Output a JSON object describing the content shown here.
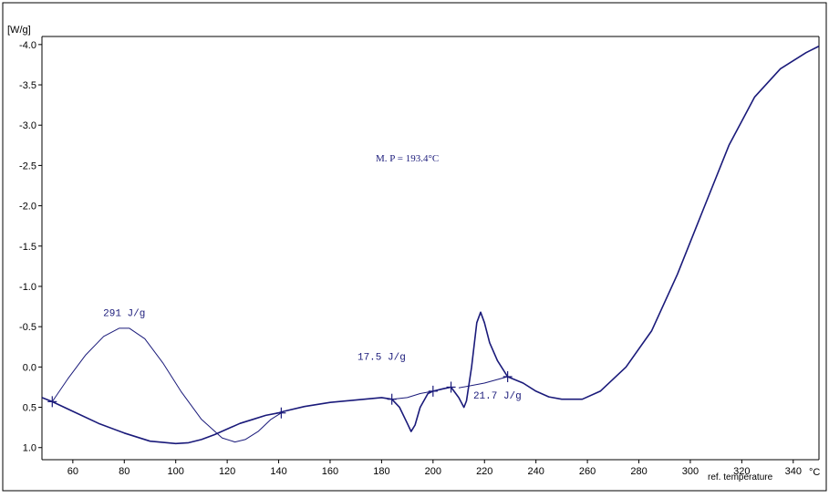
{
  "chart_data": {
    "type": "line",
    "ylabel": "[W/g]",
    "xunit": "°C",
    "xlabel": "ref. temperature",
    "xlim": [
      48,
      350
    ],
    "ylim": [
      -4.1,
      1.15
    ],
    "x_ticks": [
      "60",
      "80",
      "100",
      "120",
      "140",
      "160",
      "180",
      "200",
      "220",
      "240",
      "260",
      "280",
      "300",
      "320",
      "340"
    ],
    "y_ticks": [
      "-4.0",
      "-3.5",
      "-3.0",
      "-2.5",
      "-2.0",
      "-1.5",
      "-1.0",
      "-0.5",
      "0.0",
      "0.5",
      "1.0"
    ],
    "grid": false,
    "legend": "none",
    "line_color": "#1a1a7a",
    "series": [
      {
        "x": [
          48,
          52,
          60,
          70,
          80,
          90,
          100,
          105,
          110,
          115,
          120,
          125,
          130,
          135,
          140,
          142,
          150,
          160,
          170,
          180,
          184,
          187,
          190,
          191.5,
          193,
          195,
          198,
          200,
          204,
          207,
          210,
          212,
          213,
          215,
          217,
          218.5,
          220,
          222,
          225,
          229,
          235,
          240,
          245,
          250,
          258,
          265,
          275,
          285,
          295,
          305,
          315,
          325,
          335,
          345,
          350
        ],
        "y": [
          0.38,
          0.43,
          0.55,
          0.7,
          0.82,
          0.92,
          0.95,
          0.94,
          0.9,
          0.84,
          0.77,
          0.7,
          0.65,
          0.6,
          0.57,
          0.55,
          0.49,
          0.44,
          0.41,
          0.38,
          0.4,
          0.5,
          0.7,
          0.8,
          0.72,
          0.5,
          0.33,
          0.3,
          0.27,
          0.25,
          0.38,
          0.5,
          0.42,
          0.0,
          -0.55,
          -0.68,
          -0.55,
          -0.3,
          -0.08,
          0.12,
          0.2,
          0.3,
          0.37,
          0.4,
          0.4,
          0.3,
          0.0,
          -0.45,
          -1.15,
          -1.95,
          -2.75,
          -3.35,
          -3.7,
          -3.9,
          -3.98
        ]
      },
      {
        "x": [
          52,
          58,
          65,
          72,
          78,
          82,
          88,
          95,
          102,
          110,
          118,
          123,
          127,
          132,
          137,
          141
        ],
        "y": [
          0.43,
          0.15,
          -0.15,
          -0.38,
          -0.48,
          -0.48,
          -0.35,
          -0.05,
          0.3,
          0.65,
          0.88,
          0.93,
          0.9,
          0.8,
          0.65,
          0.57
        ]
      },
      {
        "x": [
          184,
          190,
          195,
          200,
          207
        ],
        "y": [
          0.4,
          0.38,
          0.33,
          0.3,
          0.25
        ]
      },
      {
        "x": [
          210,
          220,
          229
        ],
        "y": [
          0.26,
          0.2,
          0.12
        ]
      }
    ],
    "markers": [
      {
        "x": 52,
        "y": 0.43
      },
      {
        "x": 141,
        "y": 0.57
      },
      {
        "x": 184,
        "y": 0.4
      },
      {
        "x": 200,
        "y": 0.3
      },
      {
        "x": 207,
        "y": 0.25
      },
      {
        "x": 229,
        "y": 0.12
      }
    ],
    "annotations": [
      {
        "text": "291 J/g",
        "x": 80,
        "y": -0.63
      },
      {
        "text": "17.5 J/g",
        "x": 180,
        "y": -0.09
      },
      {
        "text": "21.7 J/g",
        "x": 225,
        "y": 0.39
      },
      {
        "text": "M. P = 193.4°C",
        "x": 190,
        "y": -2.55
      }
    ]
  }
}
